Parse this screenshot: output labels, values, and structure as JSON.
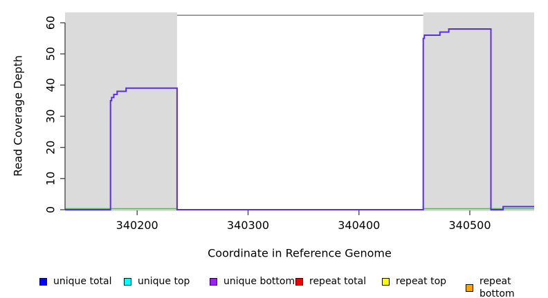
{
  "chart_data": {
    "type": "line",
    "subtype": "step-coverage",
    "title": "",
    "xlabel": "Coordinate in Reference Genome",
    "ylabel": "Read Coverage Depth",
    "xlim": [
      340135,
      340558
    ],
    "ylim": [
      0,
      63
    ],
    "x_ticks": [
      340200,
      340300,
      340400,
      340500
    ],
    "y_ticks": [
      0,
      10,
      20,
      30,
      40,
      50,
      60
    ],
    "grid": "off",
    "repeat_regions": [
      [
        340135,
        340236
      ],
      [
        340458,
        340558
      ]
    ],
    "top_border_segment": {
      "x1": 340236,
      "x2": 340458,
      "y": 62.4,
      "color": "#808080"
    },
    "colors": {
      "repeat_region_fill": "#DBDBDB",
      "coverage_line": "#5A2CE8",
      "baseline_green": "#5CB85C",
      "axis": "#404040",
      "text": "#000000"
    },
    "series": [
      {
        "name": "baseline (zero-depth marker over repeat regions)",
        "type": "segments",
        "color": "#5CB85C",
        "segments": [
          {
            "x1": 340135,
            "x2": 340236,
            "y": 0.3
          },
          {
            "x1": 340458,
            "x2": 340558,
            "y": 0.3
          }
        ]
      },
      {
        "name": "unique total / unique bottom coverage (overlapping)",
        "type": "step",
        "color": "#5A2CE8",
        "points": [
          [
            340135,
            0
          ],
          [
            340176,
            0
          ],
          [
            340176,
            35
          ],
          [
            340177,
            35
          ],
          [
            340177,
            36
          ],
          [
            340179,
            36
          ],
          [
            340179,
            37
          ],
          [
            340182,
            37
          ],
          [
            340182,
            38
          ],
          [
            340190,
            38
          ],
          [
            340190,
            39
          ],
          [
            340236,
            39
          ],
          [
            340236,
            0
          ],
          [
            340458,
            0
          ],
          [
            340458,
            55
          ],
          [
            340459,
            55
          ],
          [
            340459,
            56
          ],
          [
            340473,
            56
          ],
          [
            340473,
            57
          ],
          [
            340481,
            57
          ],
          [
            340481,
            58
          ],
          [
            340519,
            58
          ],
          [
            340519,
            0
          ],
          [
            340530,
            0
          ],
          [
            340530,
            1
          ],
          [
            340558,
            1
          ]
        ]
      }
    ],
    "legend": {
      "position": "bottom",
      "items": [
        {
          "label": "unique total",
          "color": "#0000FF"
        },
        {
          "label": "unique top",
          "color": "#00FFFF"
        },
        {
          "label": "unique bottom",
          "color": "#A020F0"
        },
        {
          "label": "repeat total",
          "color": "#EE0000"
        },
        {
          "label": "repeat top",
          "color": "#FFFF00"
        },
        {
          "label": "repeat bottom",
          "color": "#FFA500"
        }
      ]
    }
  }
}
